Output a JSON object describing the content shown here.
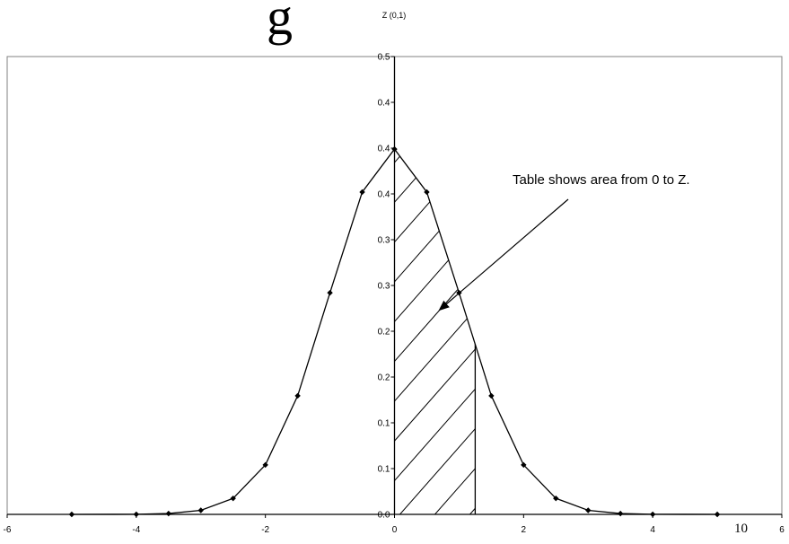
{
  "chart_data": {
    "type": "line",
    "title_fragment": "g",
    "subtitle": "Z (0,1)",
    "annotation": "Table shows area from 0 to Z.",
    "page_number": "10",
    "xlim": [
      -6,
      6
    ],
    "ylim": [
      0,
      0.5
    ],
    "x_ticks": [
      -6,
      -4,
      -2,
      0,
      2,
      4,
      6
    ],
    "x_tick_labels": [
      "-6",
      "-4",
      "-2",
      "0",
      "2",
      "4",
      "6"
    ],
    "y_ticks": [
      0,
      0.05,
      0.1,
      0.15,
      0.2,
      0.25,
      0.3,
      0.35,
      0.4,
      0.45,
      0.5
    ],
    "y_tick_labels": [
      "0.0",
      "0.1",
      "0.1",
      "0.2",
      "0.2",
      "0.3",
      "0.3",
      "0.4",
      "0.4",
      "0.4",
      "0.5"
    ],
    "series": [
      {
        "x": [
          -5,
          -4,
          -3.5,
          -3,
          -2.5,
          -2,
          -1.5,
          -1,
          -0.5,
          0,
          0.5,
          1,
          1.5,
          2,
          2.5,
          3,
          3.5,
          4,
          5
        ],
        "y": [
          1.5e-06,
          0.0001,
          0.0009,
          0.0044,
          0.0175,
          0.054,
          0.1295,
          0.242,
          0.352,
          0.3989,
          0.352,
          0.242,
          0.1295,
          0.054,
          0.0175,
          0.0044,
          0.0009,
          0.0001,
          1.5e-06
        ]
      }
    ],
    "shaded_region": {
      "from": 0,
      "to": 1.25
    },
    "grid": false,
    "legend": "none"
  }
}
